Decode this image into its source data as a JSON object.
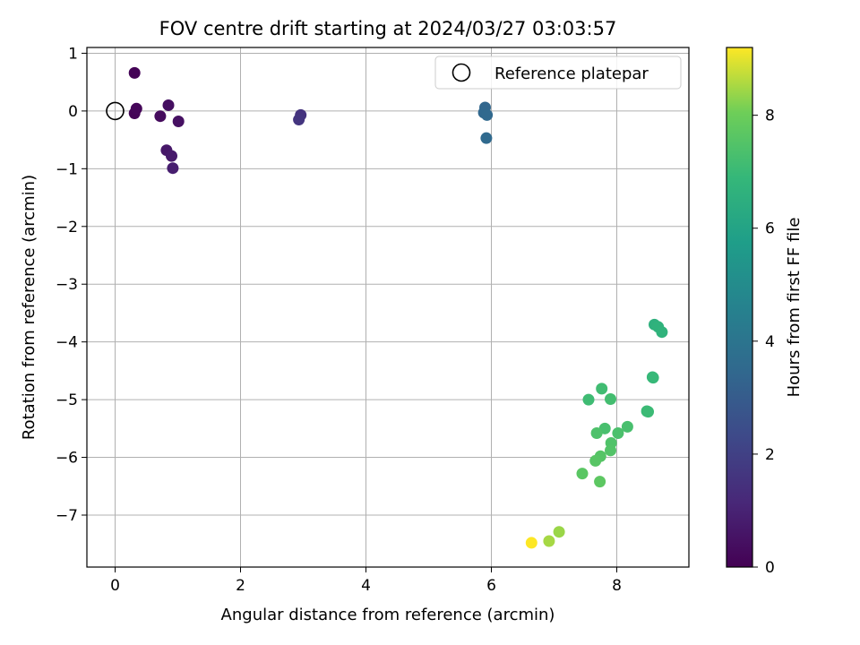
{
  "chart_data": {
    "type": "scatter",
    "title": "FOV centre drift starting at 2024/03/27 03:03:57",
    "xlabel": "Angular distance from reference (arcmin)",
    "ylabel": "Rotation from reference (arcmin)",
    "xlim": [
      -0.45,
      9.15
    ],
    "ylim": [
      -7.9,
      1.1
    ],
    "xticks": [
      0,
      2,
      4,
      6,
      8
    ],
    "yticks": [
      1,
      0,
      -1,
      -2,
      -3,
      -4,
      -5,
      -6,
      -7
    ],
    "grid": true,
    "legend": {
      "placement": "top-right",
      "entries": [
        "Reference platepar"
      ]
    },
    "reference_point": {
      "x": 0,
      "y": 0
    },
    "colorbar": {
      "label": "Hours from first FF file",
      "range": [
        0,
        9.2
      ],
      "ticks": [
        0,
        2,
        4,
        6,
        8
      ],
      "colormap": "viridis"
    },
    "points": [
      {
        "x": 0.31,
        "y": 0.66,
        "t": 0.05
      },
      {
        "x": 0.31,
        "y": -0.04,
        "t": 0.1
      },
      {
        "x": 0.34,
        "y": 0.04,
        "t": 0.15
      },
      {
        "x": 0.72,
        "y": -0.09,
        "t": 0.3
      },
      {
        "x": 0.85,
        "y": 0.1,
        "t": 0.4
      },
      {
        "x": 1.01,
        "y": -0.18,
        "t": 0.45
      },
      {
        "x": 0.82,
        "y": -0.68,
        "t": 0.65
      },
      {
        "x": 0.9,
        "y": -0.78,
        "t": 0.75
      },
      {
        "x": 0.92,
        "y": -0.99,
        "t": 0.85
      },
      {
        "x": 2.96,
        "y": -0.07,
        "t": 1.55
      },
      {
        "x": 2.93,
        "y": -0.15,
        "t": 1.6
      },
      {
        "x": 5.9,
        "y": 0.06,
        "t": 3.4
      },
      {
        "x": 5.88,
        "y": -0.03,
        "t": 3.45
      },
      {
        "x": 5.93,
        "y": -0.07,
        "t": 3.5
      },
      {
        "x": 5.92,
        "y": -0.47,
        "t": 3.55
      },
      {
        "x": 8.6,
        "y": -3.7,
        "t": 6.6
      },
      {
        "x": 8.66,
        "y": -3.74,
        "t": 6.65
      },
      {
        "x": 8.72,
        "y": -3.83,
        "t": 6.7
      },
      {
        "x": 8.57,
        "y": -4.61,
        "t": 6.9
      },
      {
        "x": 8.58,
        "y": -4.62,
        "t": 6.95
      },
      {
        "x": 7.55,
        "y": -5.0,
        "t": 7.1
      },
      {
        "x": 7.76,
        "y": -4.81,
        "t": 7.15
      },
      {
        "x": 7.9,
        "y": -4.99,
        "t": 7.2
      },
      {
        "x": 8.48,
        "y": -5.2,
        "t": 7.0
      },
      {
        "x": 8.5,
        "y": -5.21,
        "t": 7.05
      },
      {
        "x": 7.81,
        "y": -5.5,
        "t": 7.3
      },
      {
        "x": 8.17,
        "y": -5.47,
        "t": 7.3
      },
      {
        "x": 8.02,
        "y": -5.58,
        "t": 7.35
      },
      {
        "x": 7.68,
        "y": -5.58,
        "t": 7.4
      },
      {
        "x": 7.91,
        "y": -5.75,
        "t": 7.45
      },
      {
        "x": 7.9,
        "y": -5.88,
        "t": 7.5
      },
      {
        "x": 7.74,
        "y": -5.98,
        "t": 7.55
      },
      {
        "x": 7.66,
        "y": -6.06,
        "t": 7.6
      },
      {
        "x": 7.45,
        "y": -6.28,
        "t": 7.65
      },
      {
        "x": 7.73,
        "y": -6.42,
        "t": 7.7
      },
      {
        "x": 7.08,
        "y": -7.29,
        "t": 8.4
      },
      {
        "x": 6.92,
        "y": -7.45,
        "t": 8.5
      },
      {
        "x": 6.64,
        "y": -7.48,
        "t": 9.2
      }
    ]
  }
}
